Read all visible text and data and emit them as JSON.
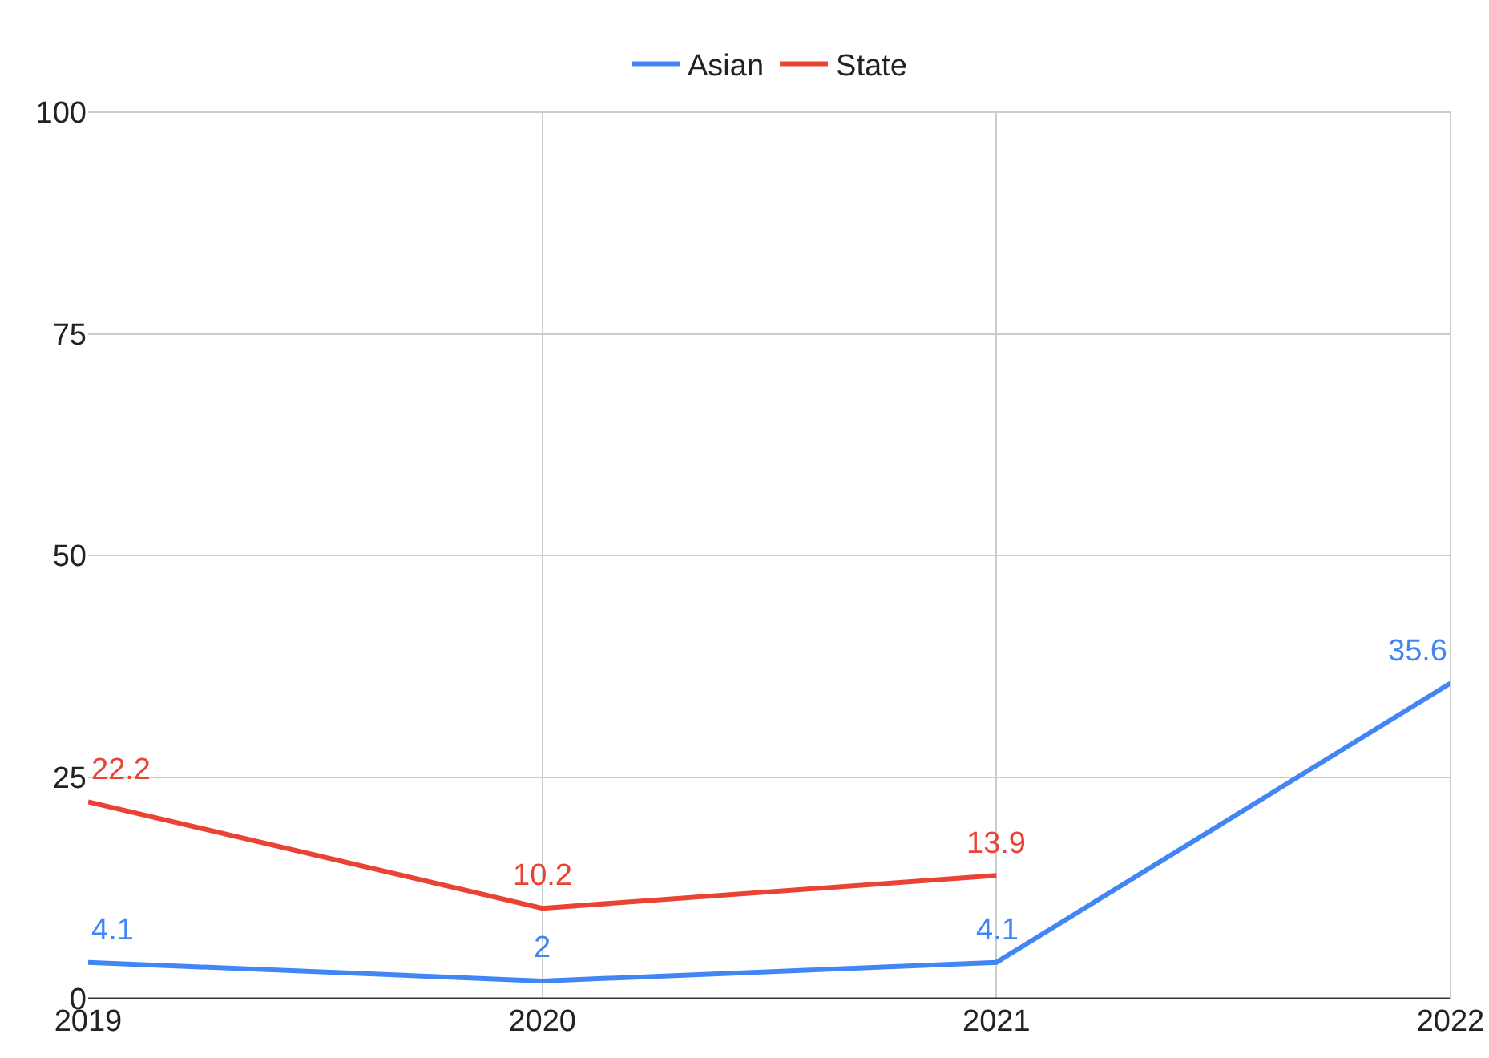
{
  "chart_data": {
    "type": "line",
    "x": [
      2019,
      2020,
      2021,
      2022
    ],
    "series": [
      {
        "name": "Asian",
        "color": "#4285f4",
        "values": [
          4.1,
          2,
          4.1,
          35.6
        ]
      },
      {
        "name": "State",
        "color": "#ea4335",
        "values": [
          22.2,
          10.2,
          13.9,
          null
        ]
      }
    ],
    "xlim": [
      2019,
      2022
    ],
    "xticks": [
      2019,
      2020,
      2021,
      2022
    ],
    "ylim": [
      0,
      100
    ],
    "yticks": [
      0,
      25,
      50,
      75,
      100
    ],
    "grid": true,
    "legend": "top",
    "data_labels": true,
    "marker": "none",
    "line_style": "solid"
  }
}
